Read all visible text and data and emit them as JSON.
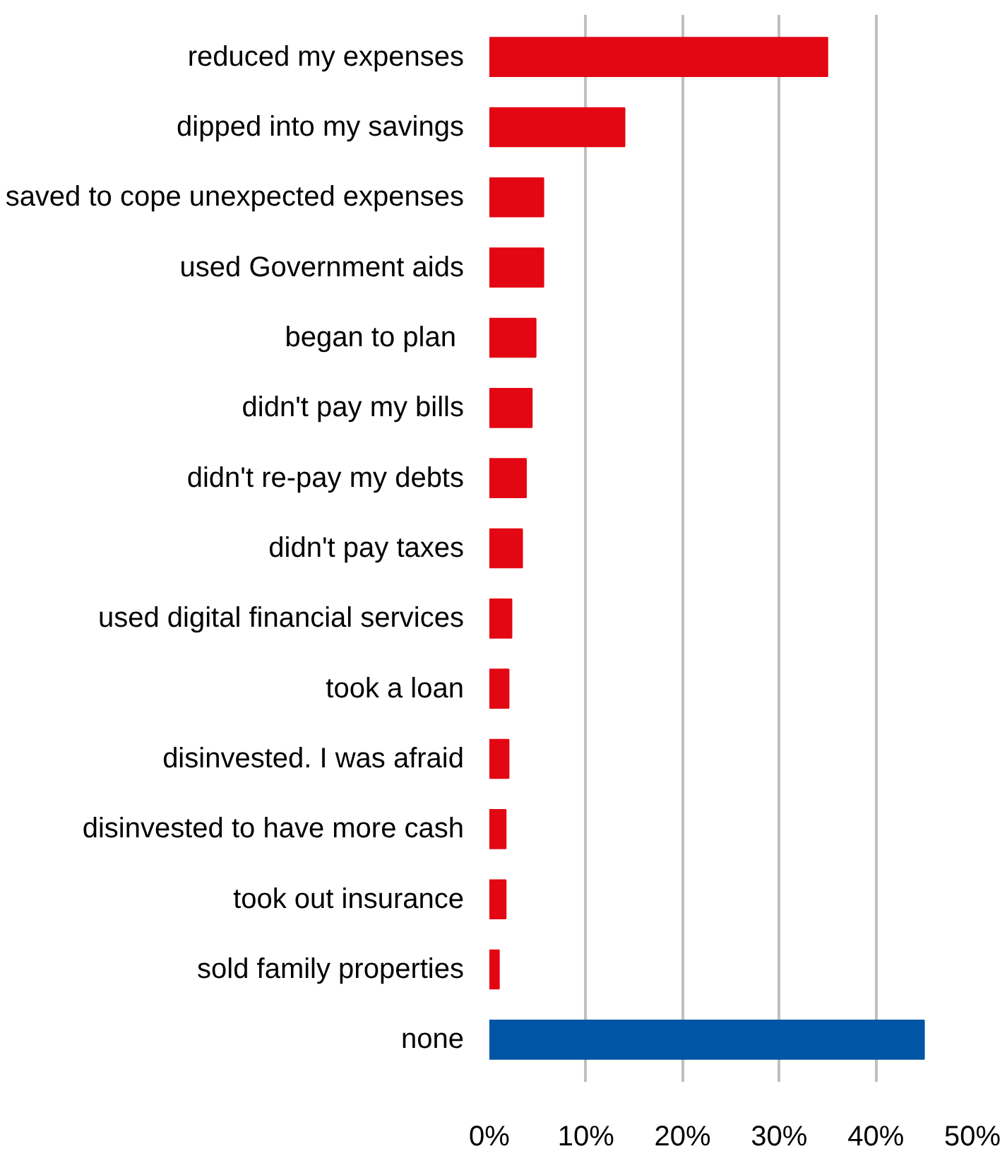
{
  "chart_data": {
    "type": "bar",
    "orientation": "horizontal",
    "categories": [
      "reduced my expenses",
      "dipped into my savings",
      "saved to cope unexpected expenses",
      "used Government aids",
      "began to plan ",
      "didn't pay my bills",
      "didn't re-pay my debts",
      "didn't pay taxes",
      "used digital financial services",
      "took a loan",
      "disinvested. I was afraid",
      "disinvested to have more cash",
      "took out insurance",
      "sold family properties",
      "none"
    ],
    "values": [
      35,
      14,
      5.6,
      5.6,
      4.8,
      4.4,
      3.8,
      3.4,
      2.3,
      2.0,
      2.0,
      1.7,
      1.7,
      1.0,
      45
    ],
    "colors": [
      "#e30613",
      "#e30613",
      "#e30613",
      "#e30613",
      "#e30613",
      "#e30613",
      "#e30613",
      "#e30613",
      "#e30613",
      "#e30613",
      "#e30613",
      "#e30613",
      "#e30613",
      "#e30613",
      "#0055a4"
    ],
    "xlim": [
      0,
      50
    ],
    "xticks": [
      {
        "value": 0,
        "label": "0%"
      },
      {
        "value": 10,
        "label": "10%"
      },
      {
        "value": 20,
        "label": "20%"
      },
      {
        "value": 30,
        "label": "30%"
      },
      {
        "value": 40,
        "label": "40%"
      },
      {
        "value": 50,
        "label": "50%"
      }
    ],
    "grid": "x"
  }
}
